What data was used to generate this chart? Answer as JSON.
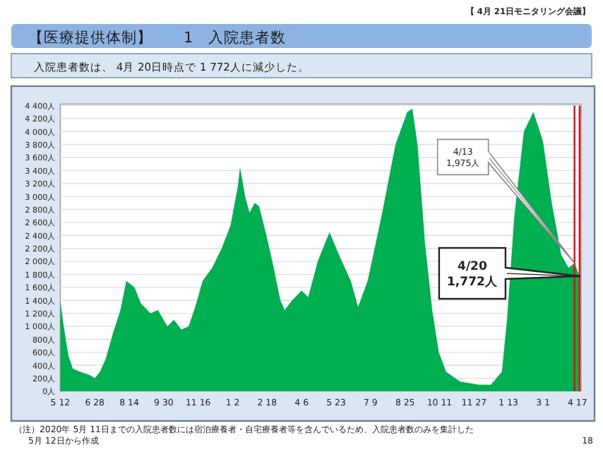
{
  "chart_data": {
    "type": "area",
    "title": "【医療提供体制】　　1　入院患者数",
    "subtitle": "入院患者数は、 4月 20日時点で 1 772人に減少した。",
    "annotations": [
      "【 4月 21日モニタリング会議】",
      {
        "text": "4/13\n1,975人",
        "x": "2022-04-13",
        "y": 1975
      },
      {
        "text": "4/20\n1,772人",
        "x": "2022-04-20",
        "y": 1772
      },
      "（注）2020年 5月 11日までの入院患者数には宿泊療養者・自宅療養者等を含んでいるため、入院患者数のみを集計した\n5月 12日から作成",
      "18"
    ],
    "x": [
      "2020-05-12",
      "2020-05-16",
      "2020-05-23",
      "2020-05-29",
      "2020-06-08",
      "2020-06-21",
      "2020-06-28",
      "2020-07-05",
      "2020-07-13",
      "2020-07-23",
      "2020-08-02",
      "2020-08-10",
      "2020-08-21",
      "2020-08-30",
      "2020-09-12",
      "2020-09-22",
      "2020-10-05",
      "2020-10-14",
      "2020-10-24",
      "2020-11-03",
      "2020-11-12",
      "2020-11-22",
      "2020-12-05",
      "2020-12-18",
      "2020-12-30",
      "2021-01-09",
      "2021-01-12",
      "2021-01-19",
      "2021-01-25",
      "2021-02-01",
      "2021-02-07",
      "2021-02-17",
      "2021-02-26",
      "2021-03-08",
      "2021-03-14",
      "2021-03-24",
      "2021-04-06",
      "2021-04-15",
      "2021-04-28",
      "2021-05-14",
      "2021-05-27",
      "2021-06-12",
      "2021-06-22",
      "2021-07-05",
      "2021-07-24",
      "2021-08-12",
      "2021-08-28",
      "2021-09-04",
      "2021-09-11",
      "2021-09-21",
      "2021-10-01",
      "2021-10-10",
      "2021-10-20",
      "2021-11-08",
      "2021-12-04",
      "2021-12-20",
      "2022-01-04",
      "2022-01-11",
      "2022-01-21",
      "2022-02-03",
      "2022-02-16",
      "2022-03-01",
      "2022-03-13",
      "2022-03-26",
      "2022-04-05",
      "2022-04-13",
      "2022-04-20"
    ],
    "series": [
      {
        "color": "#00b050",
        "values": [
          1400,
          1050,
          550,
          350,
          300,
          250,
          200,
          300,
          500,
          900,
          1250,
          1700,
          1600,
          1350,
          1200,
          1250,
          1000,
          1100,
          950,
          1000,
          1300,
          1700,
          1900,
          2200,
          2550,
          3150,
          3450,
          3000,
          2750,
          2900,
          2850,
          2400,
          1950,
          1400,
          1250,
          1400,
          1550,
          1450,
          2000,
          2450,
          2100,
          1700,
          1300,
          1700,
          2700,
          3800,
          4300,
          4350,
          3800,
          2300,
          1250,
          600,
          300,
          150,
          100,
          100,
          300,
          1100,
          2700,
          4000,
          4300,
          3850,
          2900,
          2100,
          1900,
          1975,
          1772
        ]
      }
    ],
    "ref_lines": [
      {
        "axis": "x",
        "value": "2022-04-13",
        "color": "#ff0000"
      },
      {
        "axis": "x",
        "value": "2022-04-20",
        "color": "#ff0000"
      }
    ],
    "xlim": [
      "2020-05-12",
      "2022-04-22"
    ],
    "xticks": [
      {
        "value": "2020-05-12",
        "label": "5 12"
      },
      {
        "value": "2020-06-28",
        "label": "6 28"
      },
      {
        "value": "2020-08-14",
        "label": "8 14"
      },
      {
        "value": "2020-09-30",
        "label": "9 30"
      },
      {
        "value": "2020-11-16",
        "label": "11 16"
      },
      {
        "value": "2021-01-02",
        "label": "1 2"
      },
      {
        "value": "2021-02-18",
        "label": "2 18"
      },
      {
        "value": "2021-04-06",
        "label": "4 6"
      },
      {
        "value": "2021-05-23",
        "label": "5 23"
      },
      {
        "value": "2021-07-09",
        "label": "7 9"
      },
      {
        "value": "2021-08-25",
        "label": "8 25"
      },
      {
        "value": "2021-10-11",
        "label": "10 11"
      },
      {
        "value": "2021-11-27",
        "label": "11 27"
      },
      {
        "value": "2022-01-13",
        "label": "1 13"
      },
      {
        "value": "2022-03-01",
        "label": "3 1"
      },
      {
        "value": "2022-04-17",
        "label": "4 17"
      }
    ],
    "ylim": [
      0,
      4400
    ],
    "yticks": [
      {
        "value": 0,
        "label": "0人"
      },
      {
        "value": 200,
        "label": "200人"
      },
      {
        "value": 400,
        "label": "400人"
      },
      {
        "value": 600,
        "label": "600人"
      },
      {
        "value": 800,
        "label": "800人"
      },
      {
        "value": 1000,
        "label": "1 000人"
      },
      {
        "value": 1200,
        "label": "1 200人"
      },
      {
        "value": 1400,
        "label": "1 400人"
      },
      {
        "value": 1600,
        "label": "1 600人"
      },
      {
        "value": 1800,
        "label": "1 800人"
      },
      {
        "value": 2000,
        "label": "2 000人"
      },
      {
        "value": 2200,
        "label": "2 200人"
      },
      {
        "value": 2400,
        "label": "2 400人"
      },
      {
        "value": 2600,
        "label": "2 600人"
      },
      {
        "value": 2800,
        "label": "2 800人"
      },
      {
        "value": 3000,
        "label": "3 000人"
      },
      {
        "value": 3200,
        "label": "3 200人"
      },
      {
        "value": 3400,
        "label": "3 400人"
      },
      {
        "value": 3600,
        "label": "3 600人"
      },
      {
        "value": 3800,
        "label": "3 800人"
      },
      {
        "value": 4000,
        "label": "4 000人"
      },
      {
        "value": 4200,
        "label": "4 200人"
      },
      {
        "value": 4400,
        "label": "4 400人"
      }
    ],
    "grid": "y"
  }
}
